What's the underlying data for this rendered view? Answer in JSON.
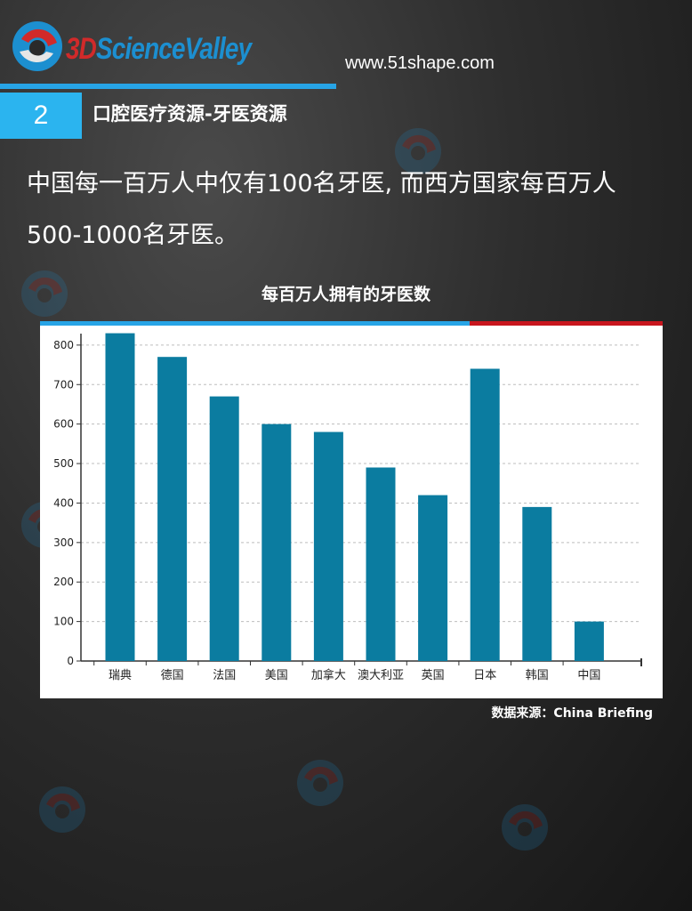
{
  "header": {
    "logo_prefix": "3D",
    "logo_name": "ScienceValley",
    "url": "www.51shape.com"
  },
  "section": {
    "number": "2",
    "title": "口腔医疗资源-牙医资源"
  },
  "lead": {
    "text": "中国每一百万人中仅有100名牙医, 而西方国家每百万人500-1000名牙医。"
  },
  "source": "数据来源：China Briefing",
  "colors": {
    "bar": "#0b7ca0",
    "accent_blue": "#27a4e6",
    "accent_red": "#c8161e"
  },
  "chart_data": {
    "type": "bar",
    "title": "每百万人拥有的牙医数",
    "xlabel": "",
    "ylabel": "",
    "categories": [
      "瑞典",
      "德国",
      "法国",
      "美国",
      "加拿大",
      "澳大利亚",
      "英国",
      "日本",
      "韩国",
      "中国"
    ],
    "values": [
      830,
      770,
      670,
      600,
      580,
      490,
      420,
      740,
      390,
      100
    ],
    "ylim": [
      0,
      820
    ],
    "yticks": [
      0,
      100,
      200,
      300,
      400,
      500,
      600,
      700,
      800
    ],
    "grid": true,
    "legend": "none"
  }
}
